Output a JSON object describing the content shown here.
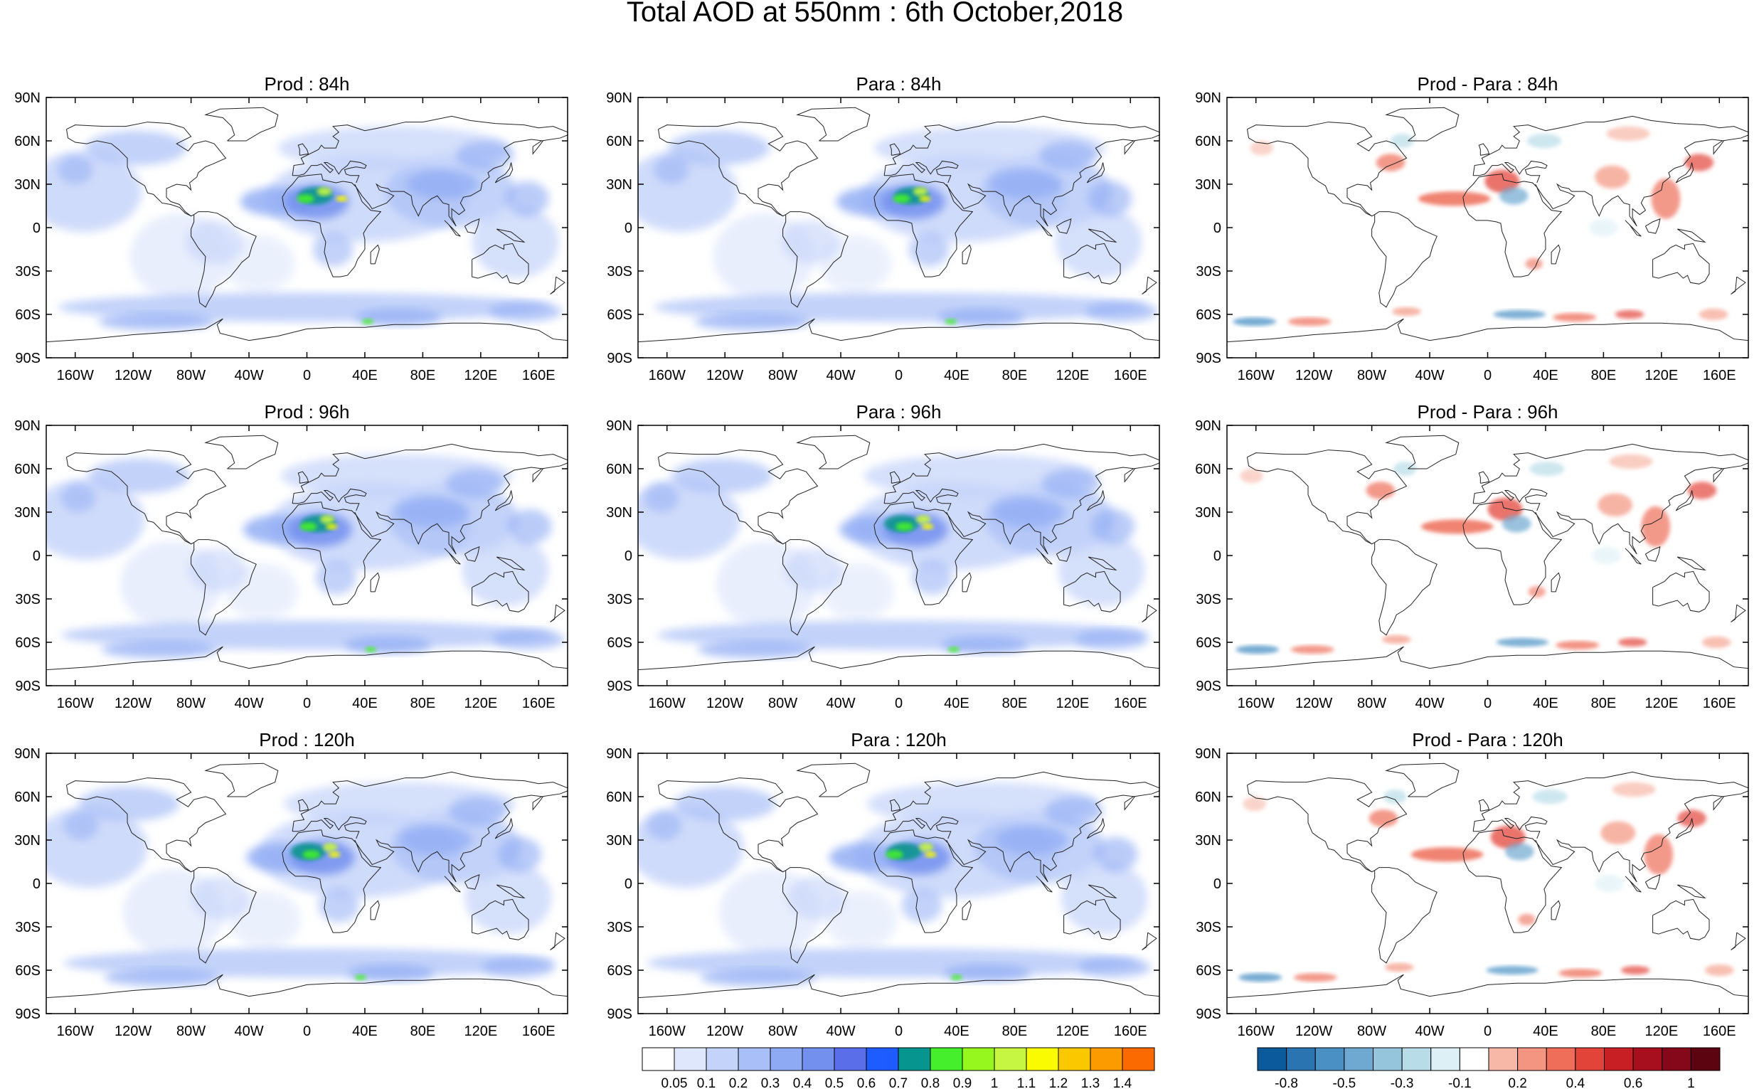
{
  "title": "Total AOD at 550nm : 6th October,2018",
  "panels": [
    {
      "title": "Prod : 84h",
      "kind": "aod"
    },
    {
      "title": "Para : 84h",
      "kind": "aod"
    },
    {
      "title": "Prod - Para : 84h",
      "kind": "diff"
    },
    {
      "title": "Prod : 96h",
      "kind": "aod"
    },
    {
      "title": "Para : 96h",
      "kind": "aod"
    },
    {
      "title": "Prod - Para : 96h",
      "kind": "diff"
    },
    {
      "title": "Prod : 120h",
      "kind": "aod"
    },
    {
      "title": "Para : 120h",
      "kind": "aod"
    },
    {
      "title": "Prod - Para : 120h",
      "kind": "diff"
    }
  ],
  "lat_ticks": [
    "90N",
    "60N",
    "30N",
    "0",
    "30S",
    "60S",
    "90S"
  ],
  "lon_ticks": [
    "160W",
    "120W",
    "80W",
    "40W",
    "0",
    "40E",
    "80E",
    "120E",
    "160E"
  ],
  "aod_colorbar": {
    "labels": [
      "0.05",
      "0.1",
      "0.2",
      "0.3",
      "0.4",
      "0.5",
      "0.6",
      "0.7",
      "0.8",
      "0.9",
      "1",
      "1.1",
      "1.2",
      "1.3",
      "1.4"
    ],
    "colors": [
      "#ffffff",
      "#dfe7fc",
      "#c4d3fa",
      "#a9bff7",
      "#8eaaf4",
      "#7390ef",
      "#5a6eea",
      "#1f5cff",
      "#07958f",
      "#45ef2c",
      "#95f71e",
      "#c6f542",
      "#fbfb00",
      "#fbc800",
      "#fb9b00",
      "#fb6a00"
    ]
  },
  "diff_colorbar": {
    "labels": [
      "-0.8",
      "-0.5",
      "-0.3",
      "-0.1",
      "0.2",
      "0.4",
      "0.6",
      "1"
    ],
    "colors": [
      "#0a5a9c",
      "#2a74b2",
      "#4a90c4",
      "#6fa9d1",
      "#95c5dc",
      "#b9dde8",
      "#dcf0f5",
      "#ffffff",
      "#f7b8a8",
      "#f39580",
      "#ee6e5a",
      "#e3443a",
      "#c81f25",
      "#a70f1e",
      "#85081a",
      "#5c0511"
    ]
  }
}
